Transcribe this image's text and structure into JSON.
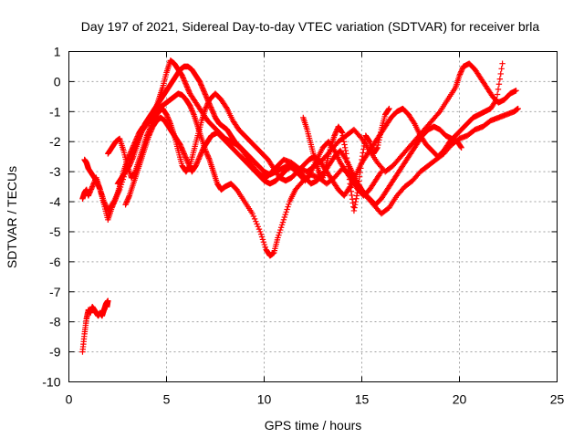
{
  "chart_data": {
    "type": "scatter",
    "title": "Day 197 of 2021, Sidereal Day-to-day VTEC variation (SDTVAR) for receiver brla",
    "xlabel": "GPS time / hours",
    "ylabel": "SDTVAR / TECUs",
    "xlim": [
      0,
      25
    ],
    "ylim": [
      -10,
      1
    ],
    "xticks": [
      "0",
      "5",
      "10",
      "15",
      "20",
      "25"
    ],
    "xtick_values": [
      0,
      5,
      10,
      15,
      20,
      25
    ],
    "yticks": [
      "1",
      "0",
      "-1",
      "-2",
      "-3",
      "-4",
      "-5",
      "-6",
      "-7",
      "-8",
      "-9",
      "-10"
    ],
    "ytick_values": [
      1,
      0,
      -1,
      -2,
      -3,
      -4,
      -5,
      -6,
      -7,
      -8,
      -9,
      -10
    ],
    "grid": true,
    "legend": "none",
    "marker": "plus",
    "color": "#ff0000",
    "series": [
      {
        "x": [
          0.7,
          0.8,
          0.9,
          1.0,
          1.1,
          1.2,
          1.3,
          1.4,
          1.5,
          1.6,
          1.7,
          1.8,
          1.9,
          2.0,
          1.95
        ],
        "y": [
          -9.0,
          -8.4,
          -7.9,
          -7.6,
          -7.7,
          -7.5,
          -7.6,
          -7.7,
          -7.8,
          -7.7,
          -7.8,
          -7.6,
          -7.4,
          -7.3,
          -7.5
        ]
      },
      {
        "x": [
          0.7,
          0.8,
          0.9,
          1.0,
          1.2,
          1.4,
          1.6,
          1.8,
          2.0,
          2.2,
          2.4,
          2.6,
          2.8,
          3.0,
          3.2,
          3.4,
          3.6,
          3.8,
          4.0,
          4.2,
          4.4,
          4.6,
          4.8,
          5.0,
          5.2,
          5.4,
          5.6,
          5.8,
          6.0,
          6.2,
          6.4,
          6.6,
          6.8,
          7.0,
          7.2,
          7.4,
          7.6,
          7.8,
          8.0,
          8.3,
          8.6,
          9.0,
          9.4,
          9.8,
          10.1,
          10.3,
          10.5,
          10.7,
          11.0,
          11.3,
          11.6,
          12.0,
          12.4,
          12.8,
          13.2,
          13.6,
          14.0,
          14.4,
          14.8,
          15.2,
          15.6,
          16.0,
          16.4,
          16.8,
          17.2,
          17.6,
          18.0,
          18.4,
          18.8,
          19.2,
          19.6,
          20.0,
          20.4,
          20.8,
          21.2,
          21.6,
          22.0,
          22.4,
          22.8,
          23.0
        ],
        "y": [
          -3.9,
          -3.7,
          -3.6,
          -3.8,
          -3.5,
          -3.2,
          -3.6,
          -4.1,
          -4.6,
          -4.2,
          -3.9,
          -3.5,
          -3.0,
          -2.6,
          -2.3,
          -2.0,
          -1.7,
          -1.5,
          -1.4,
          -1.3,
          -1.1,
          -0.9,
          -0.8,
          -0.7,
          -0.6,
          -0.5,
          -0.4,
          -0.45,
          -0.6,
          -0.8,
          -1.1,
          -1.5,
          -1.9,
          -2.3,
          -2.6,
          -3.0,
          -3.4,
          -3.6,
          -3.5,
          -3.4,
          -3.6,
          -4.0,
          -4.4,
          -5.0,
          -5.6,
          -5.8,
          -5.7,
          -5.2,
          -4.6,
          -4.0,
          -3.6,
          -3.3,
          -3.1,
          -3.2,
          -3.4,
          -3.2,
          -2.9,
          -3.1,
          -3.4,
          -3.8,
          -4.1,
          -4.4,
          -4.2,
          -3.8,
          -3.5,
          -3.3,
          -3.0,
          -2.8,
          -2.6,
          -2.4,
          -2.1,
          -1.9,
          -1.8,
          -1.6,
          -1.5,
          -1.3,
          -1.2,
          -1.1,
          -1.0,
          -0.9
        ]
      },
      {
        "x": [
          0.8,
          0.9,
          1.0,
          1.2,
          1.4,
          1.6,
          1.8,
          2.0,
          2.3,
          2.6,
          2.9,
          3.2,
          3.5,
          3.8,
          4.1,
          4.4,
          4.6,
          4.8,
          5.0,
          5.2,
          5.4,
          5.6,
          5.8,
          6.0,
          6.2,
          6.5,
          6.8,
          7.1,
          7.4,
          7.7,
          8.0,
          8.3,
          8.6,
          8.9,
          9.2,
          9.5,
          9.8,
          10.1,
          10.4,
          10.7,
          11.0,
          11.4,
          11.8,
          12.2,
          12.6,
          13.0,
          13.4,
          13.8,
          14.2,
          14.6,
          15.0,
          15.4,
          15.8,
          16.2,
          16.6,
          17.0,
          17.4,
          17.8,
          18.2,
          18.6,
          19.0,
          19.4,
          19.8,
          20.0,
          20.2,
          20.5,
          20.8,
          21.1,
          21.4,
          21.7,
          22.0,
          22.3,
          22.6,
          22.9
        ],
        "y": [
          -2.6,
          -2.7,
          -2.9,
          -3.1,
          -3.3,
          -3.6,
          -4.0,
          -4.3,
          -4.0,
          -3.6,
          -3.0,
          -2.5,
          -2.0,
          -1.6,
          -1.3,
          -1.0,
          -0.6,
          -0.2,
          0.3,
          0.7,
          0.6,
          0.4,
          0.2,
          -0.1,
          -0.4,
          -0.7,
          -1.0,
          -1.3,
          -1.5,
          -1.7,
          -1.9,
          -2.0,
          -2.1,
          -2.3,
          -2.6,
          -2.9,
          -3.1,
          -3.2,
          -3.0,
          -2.8,
          -2.6,
          -2.7,
          -2.9,
          -3.0,
          -2.8,
          -2.6,
          -2.3,
          -2.0,
          -1.8,
          -1.6,
          -1.9,
          -2.3,
          -2.7,
          -3.0,
          -2.8,
          -2.5,
          -2.2,
          -1.9,
          -1.6,
          -1.3,
          -1.0,
          -0.6,
          -0.2,
          0.2,
          0.5,
          0.6,
          0.4,
          0.1,
          -0.2,
          -0.5,
          -0.7,
          -0.6,
          -0.4,
          -0.3
        ]
      },
      {
        "x": [
          2.0,
          2.2,
          2.4,
          2.6,
          2.8,
          3.0,
          3.2,
          3.4,
          3.6,
          3.8,
          4.0,
          4.2,
          4.4,
          4.6,
          4.8,
          5.0,
          5.2,
          5.4,
          5.6,
          5.8,
          6.0,
          6.2,
          6.4,
          6.6,
          6.8,
          7.0,
          7.2,
          7.5,
          7.8,
          8.1,
          8.4,
          8.7,
          9.0,
          9.3,
          9.6,
          9.9,
          10.2,
          10.5,
          10.8,
          11.1,
          11.4,
          11.7,
          12.0,
          12.3,
          12.6,
          12.9,
          13.2,
          13.5,
          13.8,
          14.1,
          14.4,
          14.7,
          15.0,
          15.3,
          15.6,
          15.9,
          16.2,
          16.5,
          16.8,
          17.1,
          17.4,
          17.7,
          18.0,
          18.3,
          18.6,
          18.9,
          19.2,
          19.5,
          19.8,
          20.1,
          20.4,
          20.7,
          21.0,
          21.3,
          21.6,
          21.9,
          22.2
        ],
        "y": [
          -2.4,
          -2.2,
          -2.0,
          -1.9,
          -2.3,
          -2.8,
          -3.2,
          -3.0,
          -2.6,
          -2.2,
          -1.8,
          -1.5,
          -1.2,
          -1.0,
          -0.9,
          -1.1,
          -1.4,
          -1.8,
          -2.3,
          -2.8,
          -3.0,
          -2.8,
          -2.3,
          -1.8,
          -1.3,
          -0.9,
          -0.6,
          -0.4,
          -0.6,
          -0.9,
          -1.3,
          -1.6,
          -1.8,
          -2.0,
          -2.2,
          -2.4,
          -2.6,
          -2.9,
          -3.2,
          -3.3,
          -3.2,
          -3.0,
          -2.8,
          -2.6,
          -2.5,
          -2.7,
          -3.0,
          -3.3,
          -3.6,
          -3.8,
          -3.5,
          -3.1,
          -2.7,
          -2.4,
          -2.1,
          -1.8,
          -1.5,
          -1.2,
          -1.0,
          -0.9,
          -1.1,
          -1.4,
          -1.8,
          -2.1,
          -2.3,
          -2.5,
          -2.3,
          -2.0,
          -1.8,
          -1.6,
          -1.4,
          -1.2,
          -1.1,
          -1.0,
          -0.9,
          -0.6,
          0.6
        ]
      },
      {
        "x": [
          2.9,
          3.1,
          3.3,
          3.5,
          3.7,
          3.9,
          4.1,
          4.3,
          4.5,
          4.7,
          4.9,
          5.1,
          5.3,
          5.5,
          5.7,
          5.9,
          6.1,
          6.3,
          6.5,
          6.7,
          6.9,
          7.1,
          7.3,
          7.6,
          7.9,
          8.2,
          8.5,
          8.8,
          9.1,
          9.4,
          9.7,
          10.0,
          10.3,
          10.6,
          10.9,
          11.2,
          11.5,
          11.8,
          12.1,
          12.4,
          12.7,
          13.0,
          13.3,
          13.6,
          13.9,
          14.2,
          14.5,
          14.8,
          15.1,
          15.4,
          15.7,
          16.0,
          16.3,
          16.6,
          16.9,
          17.2,
          17.5,
          17.8,
          18.1,
          18.4,
          18.7,
          19.0,
          19.3,
          19.6,
          19.9,
          20.1
        ],
        "y": [
          -4.1,
          -3.8,
          -3.4,
          -3.0,
          -2.6,
          -2.2,
          -1.8,
          -1.5,
          -1.3,
          -1.2,
          -1.3,
          -1.5,
          -1.7,
          -1.9,
          -2.1,
          -2.4,
          -2.7,
          -3.0,
          -2.8,
          -2.5,
          -2.2,
          -2.0,
          -1.8,
          -1.7,
          -1.9,
          -2.1,
          -2.3,
          -2.5,
          -2.7,
          -2.9,
          -3.1,
          -3.3,
          -3.4,
          -3.3,
          -3.1,
          -2.9,
          -2.8,
          -3.0,
          -3.2,
          -3.4,
          -3.3,
          -3.1,
          -2.8,
          -2.5,
          -2.3,
          -2.6,
          -3.0,
          -3.4,
          -3.7,
          -3.9,
          -4.1,
          -3.9,
          -3.6,
          -3.3,
          -3.0,
          -2.7,
          -2.4,
          -2.1,
          -1.8,
          -1.6,
          -1.5,
          -1.6,
          -1.8,
          -1.9,
          -2.0,
          -2.2
        ]
      },
      {
        "x": [
          2.5,
          2.7,
          2.9,
          3.1,
          3.3,
          3.5,
          3.7,
          3.9,
          4.1,
          4.3,
          4.5,
          4.7,
          4.9,
          5.1,
          5.3,
          5.5,
          5.7,
          5.9,
          6.1,
          6.3,
          6.5,
          6.7,
          6.9,
          7.1,
          7.3,
          7.5,
          7.7,
          7.9,
          8.1,
          8.3,
          8.5,
          8.8,
          9.1,
          9.4,
          9.7,
          10.0,
          10.3,
          10.6,
          10.9,
          11.2,
          11.5,
          11.8,
          12.1,
          12.4,
          12.7,
          13.0,
          13.3,
          13.6,
          13.9,
          14.2,
          14.5,
          14.8,
          15.1,
          15.4,
          15.7,
          16.0
        ],
        "y": [
          -3.4,
          -3.2,
          -3.0,
          -2.8,
          -2.5,
          -2.1,
          -1.7,
          -1.4,
          -1.2,
          -1.0,
          -0.8,
          -0.6,
          -0.4,
          -0.2,
          0.0,
          0.2,
          0.4,
          0.5,
          0.5,
          0.4,
          0.2,
          0.0,
          -0.3,
          -0.6,
          -0.9,
          -1.2,
          -1.4,
          -1.5,
          -1.6,
          -1.8,
          -2.0,
          -2.2,
          -2.4,
          -2.6,
          -2.8,
          -3.0,
          -3.1,
          -3.0,
          -2.9,
          -2.8,
          -2.9,
          -3.1,
          -3.3,
          -3.0,
          -2.6,
          -2.2,
          -2.0,
          -2.3,
          -2.7,
          -3.0,
          -3.3,
          -3.6,
          -3.8,
          -3.6,
          -3.3,
          -3.0
        ]
      },
      {
        "x": [
          12.0,
          12.2,
          12.4,
          12.6,
          12.8,
          13.0,
          13.2,
          13.4,
          13.6,
          13.8,
          14.0,
          14.2,
          14.4,
          14.6,
          14.8,
          15.0,
          15.2,
          15.4,
          15.6,
          15.8,
          16.0,
          16.2,
          16.4
        ],
        "y": [
          -1.2,
          -1.6,
          -2.1,
          -2.6,
          -3.0,
          -3.2,
          -2.7,
          -2.2,
          -1.8,
          -1.5,
          -1.7,
          -2.4,
          -3.4,
          -4.3,
          -3.6,
          -2.6,
          -1.8,
          -2.0,
          -2.4,
          -2.2,
          -1.6,
          -1.1,
          -0.9
        ]
      }
    ]
  }
}
